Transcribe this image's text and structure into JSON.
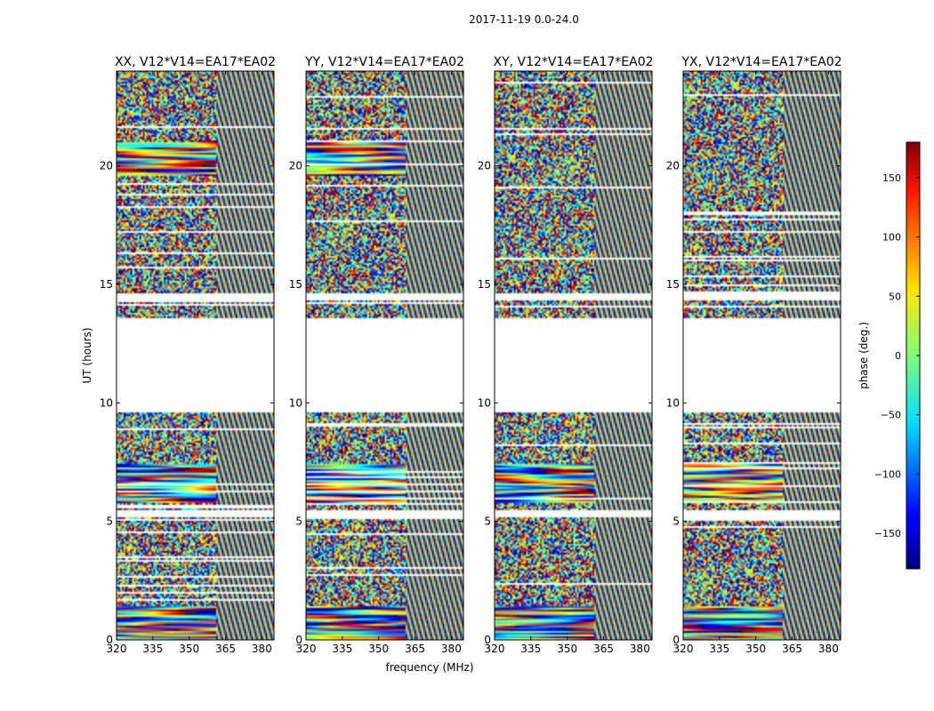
{
  "figure": {
    "suptitle": "2017-11-19 0.0-24.0",
    "xlabel": "frequency (MHz)",
    "ylabel": "UT (hours)"
  },
  "chart_data": {
    "type": "heatmap",
    "colormap": "jet",
    "xlim": [
      320,
      385
    ],
    "ylim": [
      0,
      24
    ],
    "xticks": [
      320,
      335,
      350,
      365,
      380
    ],
    "yticks": [
      0,
      5,
      10,
      15,
      20
    ],
    "split_freq": 361,
    "blank_intervals": [
      [
        9.6,
        13.6
      ],
      [
        5.2,
        5.5
      ],
      [
        14.3,
        14.6
      ]
    ],
    "panels": [
      {
        "title": "XX, V12*V14=EA17*EA02"
      },
      {
        "title": "YY, V12*V14=EA17*EA02"
      },
      {
        "title": "XY, V12*V14=EA17*EA02"
      },
      {
        "title": "YX, V12*V14=EA17*EA02"
      }
    ],
    "colorbar": {
      "label": "phase (deg.)",
      "range": [
        -180,
        180
      ],
      "ticks": [
        150,
        100,
        50,
        0,
        -50,
        -100,
        -150
      ],
      "tick_labels": [
        "150",
        "100",
        "50",
        "0",
        "−50",
        "−100",
        "−150"
      ]
    }
  }
}
